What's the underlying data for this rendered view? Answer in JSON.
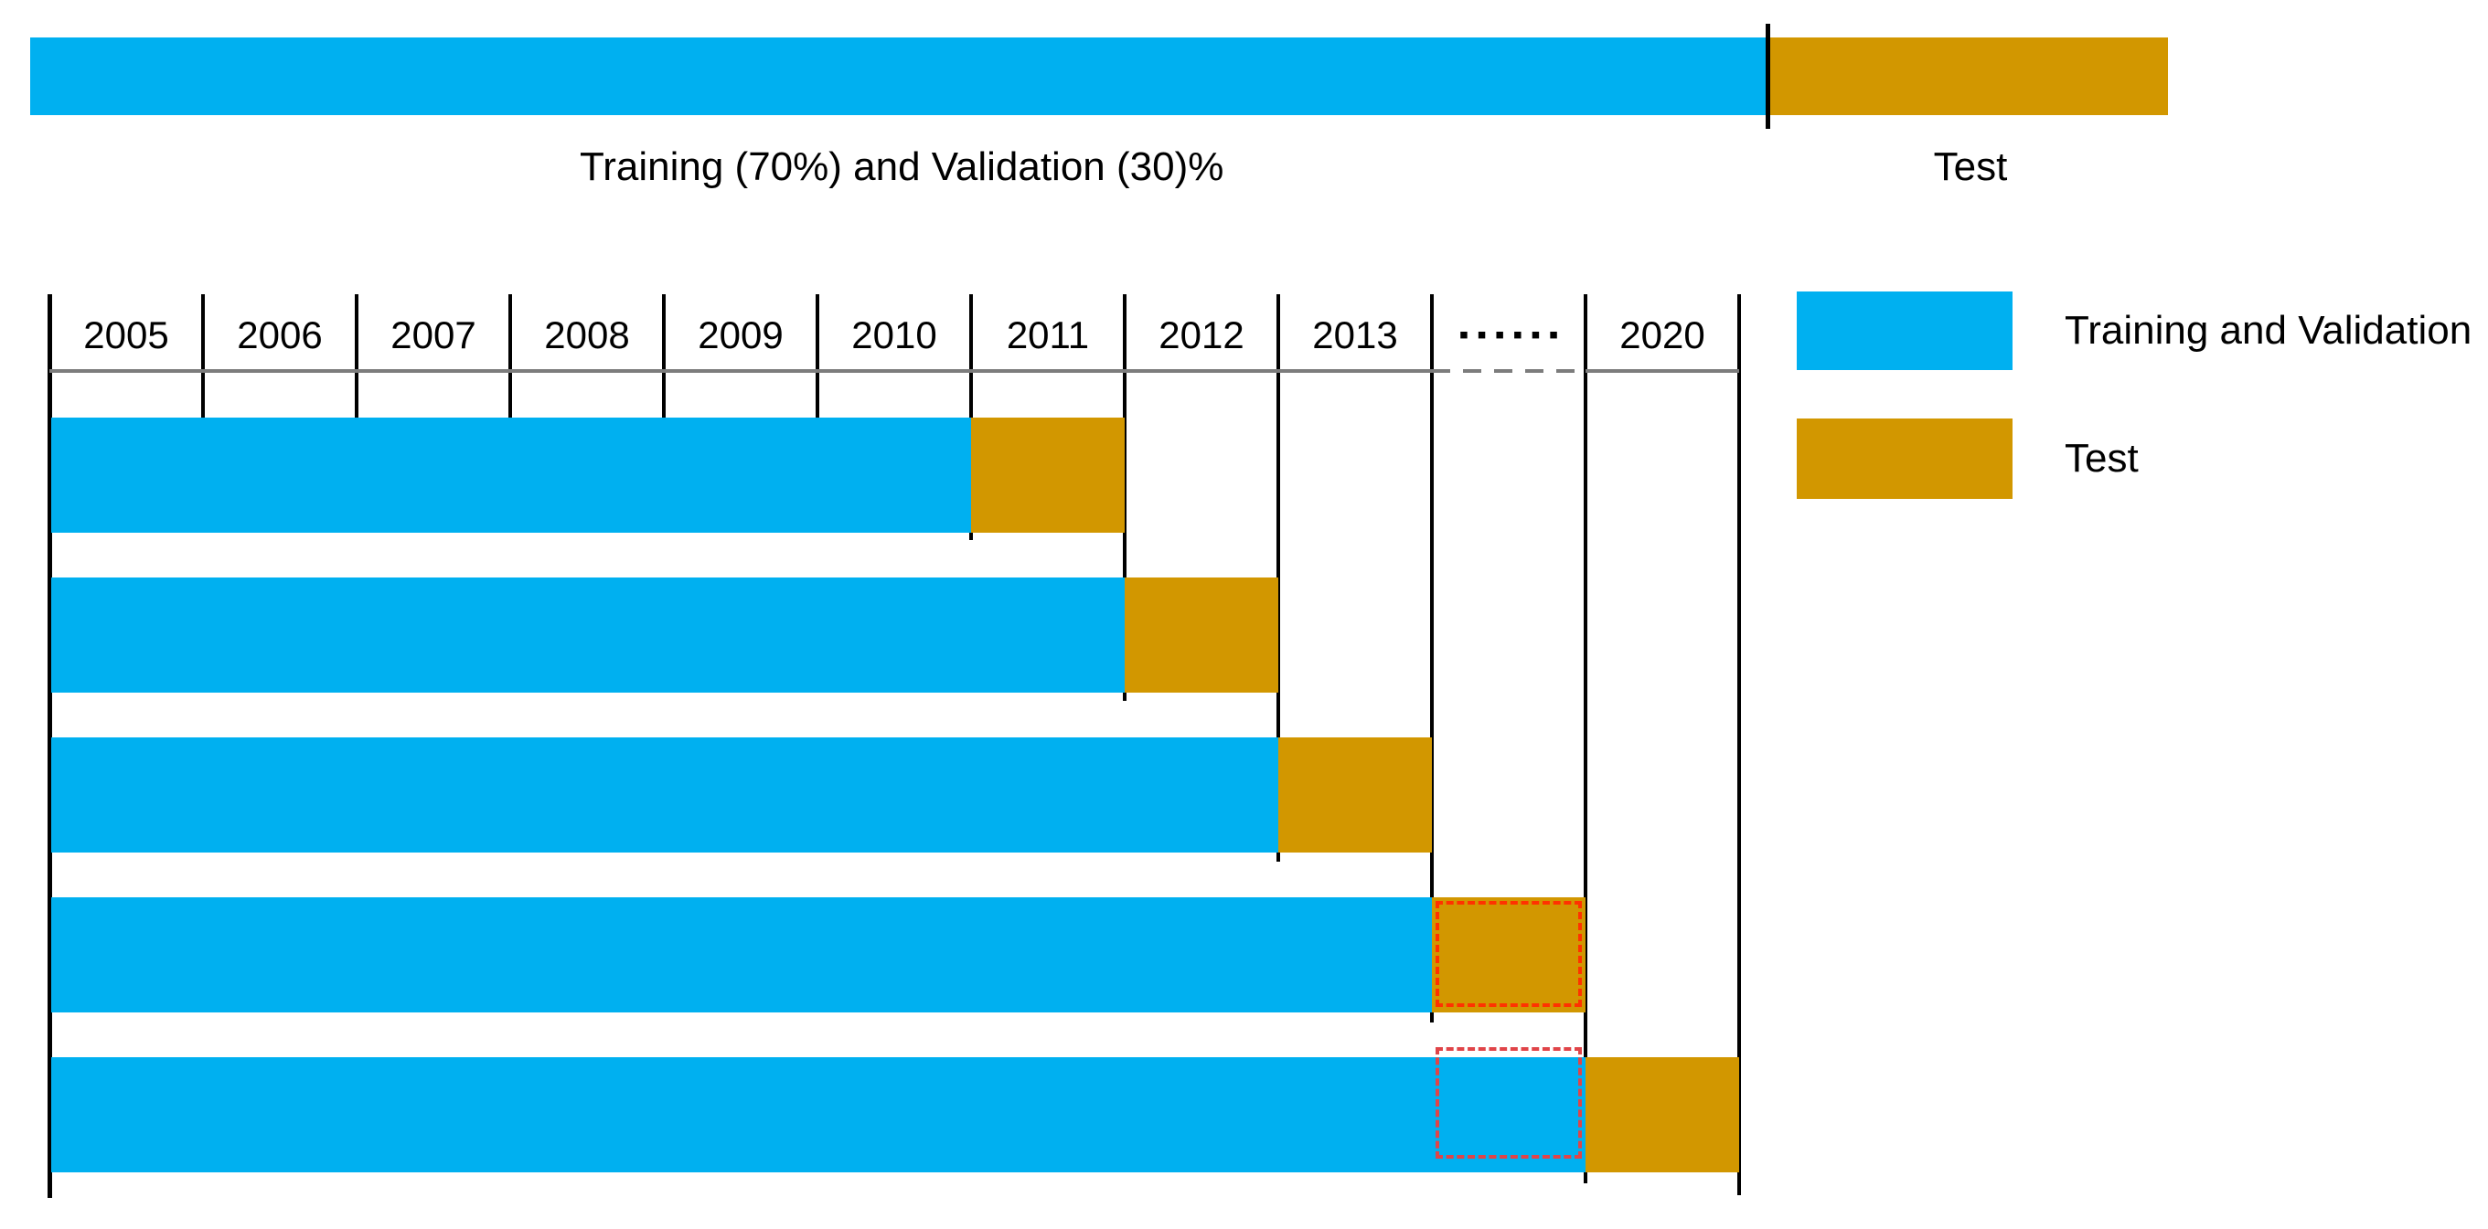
{
  "colors": {
    "train": "#00B0F0",
    "test": "#D29700",
    "line": "#000000",
    "gray": "#7C7C7C",
    "red": "#FF3200",
    "red2": "#E04448"
  },
  "top_bar": {
    "train_label": "Training (70%) and Validation (30)%",
    "test_label": "Test"
  },
  "timeline": {
    "years": [
      "2005",
      "2006",
      "2007",
      "2008",
      "2009",
      "2010",
      "2011",
      "2012",
      "2013",
      "......",
      "2020"
    ],
    "ellipsis_label": "......",
    "ellipsis_glyph": "▪▪▪▪▪▪"
  },
  "folds": [
    {
      "train": "2005–2010",
      "test": "2011"
    },
    {
      "train": "2005–2011",
      "test": "2012"
    },
    {
      "train": "2005–2012",
      "test": "2013"
    },
    {
      "train": "2005–2013",
      "test": "......",
      "test_highlighted": true
    },
    {
      "train": "2005–......",
      "test": "2020",
      "train_tail_highlighted": true
    }
  ],
  "legend": {
    "items": [
      {
        "label": "Training and Validation",
        "type": "train"
      },
      {
        "label": "Test",
        "type": "test"
      }
    ]
  }
}
